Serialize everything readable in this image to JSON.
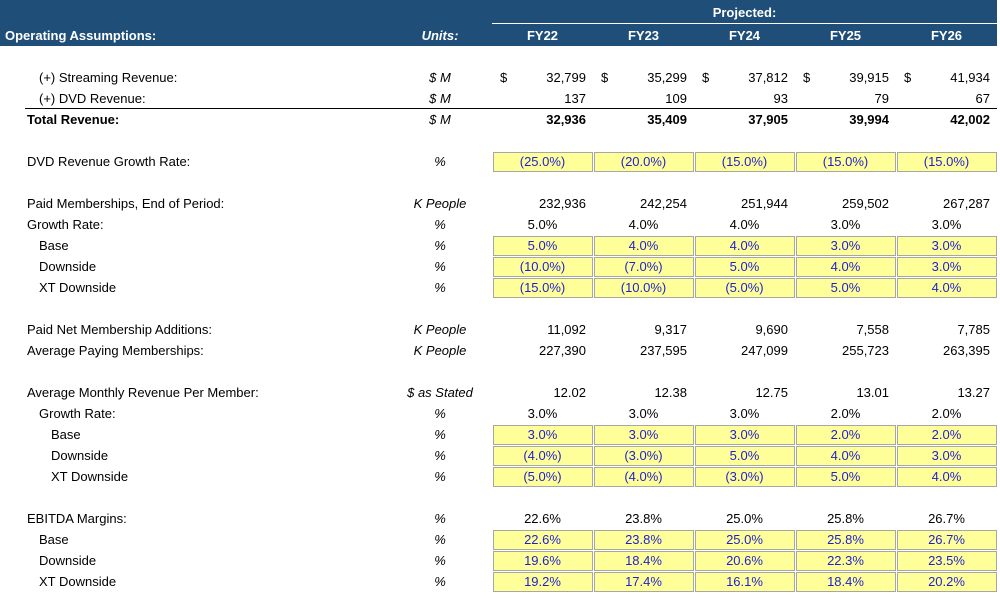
{
  "header": {
    "projected": "Projected:",
    "title": "Operating Assumptions:",
    "units": "Units:",
    "years": [
      "FY22",
      "FY23",
      "FY24",
      "FY25",
      "FY26"
    ]
  },
  "groups": [
    [
      {
        "label": "(+) Streaming Revenue:",
        "units": "$ M",
        "level": 1,
        "kind": "number",
        "currency": "$",
        "values": [
          "32,799",
          "35,299",
          "37,812",
          "39,915",
          "41,934"
        ]
      },
      {
        "label": "(+) DVD Revenue:",
        "units": "$ M",
        "level": 1,
        "kind": "number",
        "underline": true,
        "values": [
          "137",
          "109",
          "93",
          "79",
          "67"
        ]
      },
      {
        "label": "Total Revenue:",
        "units": "$ M",
        "level": 0,
        "kind": "number",
        "bold": true,
        "values": [
          "32,936",
          "35,409",
          "37,905",
          "39,994",
          "42,002"
        ]
      }
    ],
    [
      {
        "label": "DVD Revenue Growth Rate:",
        "units": "%",
        "level": 0,
        "kind": "input",
        "values": [
          "(25.0%)",
          "(20.0%)",
          "(15.0%)",
          "(15.0%)",
          "(15.0%)"
        ]
      }
    ],
    [
      {
        "label": "Paid Memberships, End of Period:",
        "units": "K People",
        "level": 0,
        "kind": "number",
        "values": [
          "232,936",
          "242,254",
          "251,944",
          "259,502",
          "267,287"
        ]
      },
      {
        "label": "Growth Rate:",
        "units": "%",
        "level": 0,
        "kind": "percent",
        "values": [
          "5.0%",
          "4.0%",
          "4.0%",
          "3.0%",
          "3.0%"
        ]
      },
      {
        "label": "Base",
        "units": "%",
        "level": 1,
        "kind": "input",
        "values": [
          "5.0%",
          "4.0%",
          "4.0%",
          "3.0%",
          "3.0%"
        ]
      },
      {
        "label": "Downside",
        "units": "%",
        "level": 1,
        "kind": "input",
        "values": [
          "(10.0%)",
          "(7.0%)",
          "5.0%",
          "4.0%",
          "3.0%"
        ]
      },
      {
        "label": "XT Downside",
        "units": "%",
        "level": 1,
        "kind": "input",
        "values": [
          "(15.0%)",
          "(10.0%)",
          "(5.0%)",
          "5.0%",
          "4.0%"
        ]
      }
    ],
    [
      {
        "label": "Paid Net Membership Additions:",
        "units": "K People",
        "level": 0,
        "kind": "number",
        "values": [
          "11,092",
          "9,317",
          "9,690",
          "7,558",
          "7,785"
        ]
      },
      {
        "label": "Average Paying Memberships:",
        "units": "K People",
        "level": 0,
        "kind": "number",
        "values": [
          "227,390",
          "237,595",
          "247,099",
          "255,723",
          "263,395"
        ]
      }
    ],
    [
      {
        "label": "Average Monthly Revenue Per Member:",
        "units": "$ as Stated",
        "level": 0,
        "kind": "number",
        "values": [
          "12.02",
          "12.38",
          "12.75",
          "13.01",
          "13.27"
        ]
      },
      {
        "label": "Growth Rate:",
        "units": "%",
        "level": 1,
        "kind": "percent",
        "values": [
          "3.0%",
          "3.0%",
          "3.0%",
          "2.0%",
          "2.0%"
        ]
      },
      {
        "label": "Base",
        "units": "%",
        "level": 2,
        "kind": "input",
        "values": [
          "3.0%",
          "3.0%",
          "3.0%",
          "2.0%",
          "2.0%"
        ]
      },
      {
        "label": "Downside",
        "units": "%",
        "level": 2,
        "kind": "input",
        "values": [
          "(4.0%)",
          "(3.0%)",
          "5.0%",
          "4.0%",
          "3.0%"
        ]
      },
      {
        "label": "XT Downside",
        "units": "%",
        "level": 2,
        "kind": "input",
        "values": [
          "(5.0%)",
          "(4.0%)",
          "(3.0%)",
          "5.0%",
          "4.0%"
        ]
      }
    ],
    [
      {
        "label": "EBITDA Margins:",
        "units": "%",
        "level": 0,
        "kind": "percent",
        "values": [
          "22.6%",
          "23.8%",
          "25.0%",
          "25.8%",
          "26.7%"
        ]
      },
      {
        "label": "Base",
        "units": "%",
        "level": 1,
        "kind": "input",
        "values": [
          "22.6%",
          "23.8%",
          "25.0%",
          "25.8%",
          "26.7%"
        ]
      },
      {
        "label": "Downside",
        "units": "%",
        "level": 1,
        "kind": "input",
        "values": [
          "19.6%",
          "18.4%",
          "20.6%",
          "22.3%",
          "23.5%"
        ]
      },
      {
        "label": "XT Downside",
        "units": "%",
        "level": 1,
        "kind": "input",
        "values": [
          "19.2%",
          "17.4%",
          "16.1%",
          "18.4%",
          "20.2%"
        ]
      }
    ]
  ]
}
